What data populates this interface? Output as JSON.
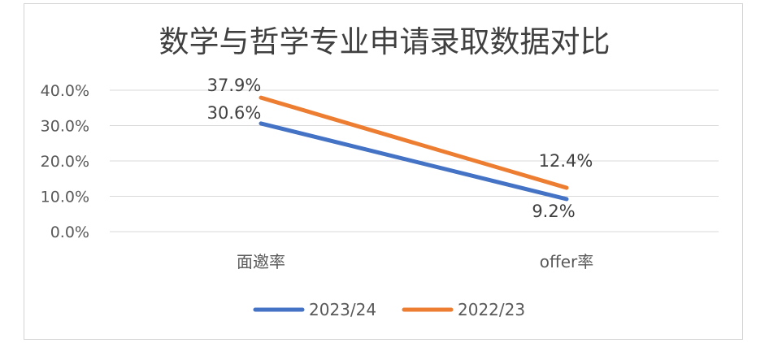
{
  "chart_data": {
    "type": "line",
    "title": "数学与哲学专业申请录取数据对比",
    "categories": [
      "面邀率",
      "offer率"
    ],
    "ylim": [
      0,
      40
    ],
    "yticks": [
      40,
      30,
      20,
      10,
      0
    ],
    "ytick_labels": [
      "40.0%",
      "30.0%",
      "20.0%",
      "10.0%",
      "0.0%"
    ],
    "grid": true,
    "legend_position": "bottom",
    "series": [
      {
        "name": "2023/24",
        "values": [
          30.6,
          9.2
        ],
        "labels": [
          "30.6%",
          "9.2%"
        ],
        "color": "#4472C4"
      },
      {
        "name": "2022/23",
        "values": [
          37.9,
          12.4
        ],
        "labels": [
          "37.9%",
          "12.4%"
        ],
        "color": "#ED7D31"
      }
    ]
  }
}
